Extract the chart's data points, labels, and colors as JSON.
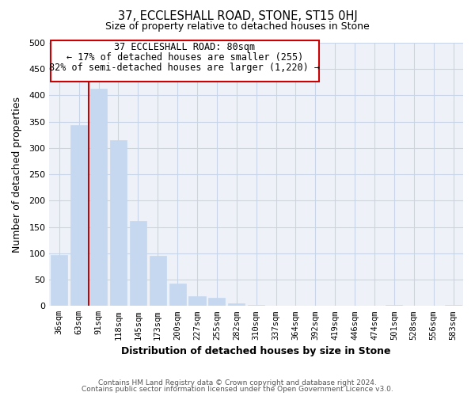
{
  "title_main": "37, ECCLESHALL ROAD, STONE, ST15 0HJ",
  "title_sub": "Size of property relative to detached houses in Stone",
  "xlabel": "Distribution of detached houses by size in Stone",
  "ylabel": "Number of detached properties",
  "bar_labels": [
    "36sqm",
    "63sqm",
    "91sqm",
    "118sqm",
    "145sqm",
    "173sqm",
    "200sqm",
    "227sqm",
    "255sqm",
    "282sqm",
    "310sqm",
    "337sqm",
    "364sqm",
    "392sqm",
    "419sqm",
    "446sqm",
    "474sqm",
    "501sqm",
    "528sqm",
    "556sqm",
    "583sqm"
  ],
  "bar_values": [
    97,
    343,
    412,
    315,
    162,
    95,
    42,
    19,
    15,
    5,
    2,
    0,
    0,
    0,
    0,
    0,
    0,
    2,
    0,
    0,
    2
  ],
  "bar_color": "#c5d8f0",
  "bar_edge_color": "#c5d8f0",
  "vline_x": 2,
  "vline_color": "#cc0000",
  "ann_line1": "37 ECCLESHALL ROAD: 80sqm",
  "ann_line2": "← 17% of detached houses are smaller (255)",
  "ann_line3": "82% of semi-detached houses are larger (1,220) →",
  "ylim": [
    0,
    500
  ],
  "yticks": [
    0,
    50,
    100,
    150,
    200,
    250,
    300,
    350,
    400,
    450,
    500
  ],
  "grid_color": "#c8d4e8",
  "background_color": "#eef2f8",
  "footer_line1": "Contains HM Land Registry data © Crown copyright and database right 2024.",
  "footer_line2": "Contains public sector information licensed under the Open Government Licence v3.0.",
  "fig_width": 6.0,
  "fig_height": 5.0,
  "dpi": 100
}
